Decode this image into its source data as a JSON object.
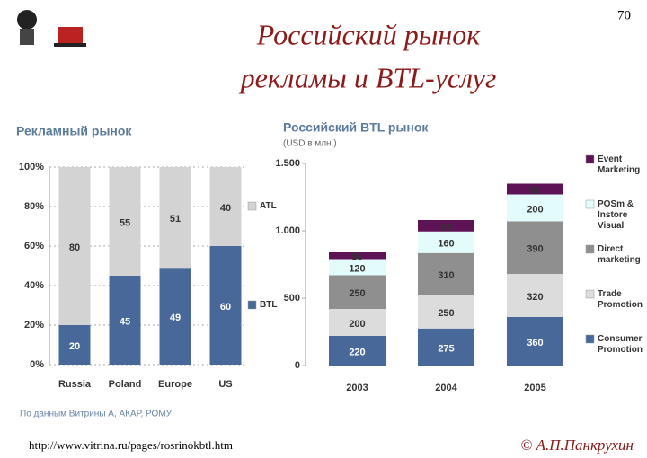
{
  "slide": {
    "title": [
      "Российский рынок",
      "рекламы и BTL-услуг"
    ],
    "page_number": "70",
    "source": "По данным Витрины А, АКАР, РОМУ",
    "url": "http://www.vitrina.ru/pages/rosrinokbtl.htm",
    "copyright": "© А.П.Панкрухин"
  },
  "chart_data": [
    {
      "type": "stacked_bar",
      "title": "Рекламный рынок",
      "categories": [
        "Russia",
        "Poland",
        "Europe",
        "US"
      ],
      "series": [
        {
          "name": "BTL",
          "color": "#48689a",
          "values": [
            20,
            45,
            49,
            60
          ]
        },
        {
          "name": "ATL",
          "color": "#d3d3d3",
          "values": [
            80,
            55,
            51,
            40
          ]
        }
      ],
      "ylim": [
        0,
        100
      ],
      "yticks": [
        {
          "value": 0,
          "label": "0%"
        },
        {
          "value": 20,
          "label": "20%"
        },
        {
          "value": 40,
          "label": "40%"
        },
        {
          "value": 60,
          "label": "60%"
        },
        {
          "value": 80,
          "label": "80%"
        },
        {
          "value": 100,
          "label": "100%"
        }
      ],
      "grid": true,
      "legend": "right"
    },
    {
      "type": "stacked_bar",
      "title": "Российский BTL рынок",
      "subtitle": "(USD в млн.)",
      "categories": [
        "2003",
        "2004",
        "2005"
      ],
      "series": [
        {
          "name": "Consumer Promotion",
          "color": "#48689a",
          "values": [
            220,
            275,
            360
          ]
        },
        {
          "name": "Trade Promotion",
          "color": "#dcdcdc",
          "values": [
            200,
            250,
            320
          ]
        },
        {
          "name": "Direct marketing",
          "color": "#8f8f8f",
          "values": [
            250,
            310,
            390
          ]
        },
        {
          "name": "POSm & Instore Visual",
          "color": "#e3fbfb",
          "values": [
            120,
            160,
            200
          ]
        },
        {
          "name": "Event Marketing",
          "color": "#5e1357",
          "values": [
            50,
            85,
            80
          ]
        }
      ],
      "ylim": [
        0,
        1500
      ],
      "yticks": [
        0,
        500,
        {
          "value": 1000,
          "label": "1.000"
        },
        {
          "value": 1500,
          "label": "1.500"
        }
      ],
      "grid": false,
      "legend": "right"
    }
  ]
}
